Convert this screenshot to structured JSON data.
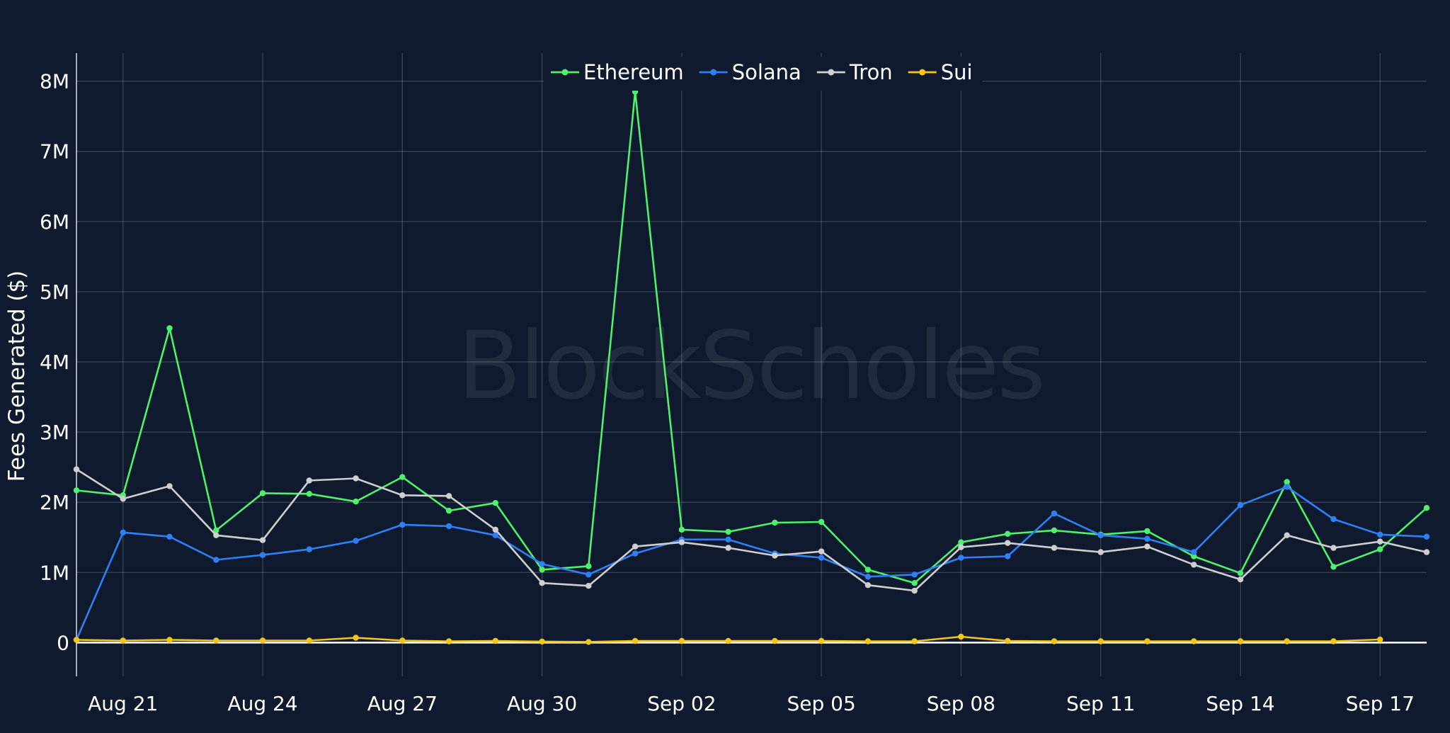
{
  "watermark": "BlockScholes",
  "colors": {
    "background": "#0f1a2e",
    "Ethereum": "#4cf26a",
    "Solana": "#2f80f7",
    "Tron": "#cfcfcf",
    "Sui": "#f5c518"
  },
  "chart_data": {
    "type": "line",
    "title": "",
    "xlabel": "",
    "ylabel": "Fees Generated ($)",
    "ylim": [
      -480000,
      8400000
    ],
    "xlim": [
      "2024-08-20",
      "2024-09-18"
    ],
    "grid": true,
    "legend": "top-center",
    "x_tick_labels": [
      "Aug 21",
      "Aug 24",
      "Aug 27",
      "Aug 30",
      "Sep 02",
      "Sep 05",
      "Sep 08",
      "Sep 11",
      "Sep 14",
      "Sep 17"
    ],
    "x_tick_dates": [
      "2024-08-21",
      "2024-08-24",
      "2024-08-27",
      "2024-08-30",
      "2024-09-02",
      "2024-09-05",
      "2024-09-08",
      "2024-09-11",
      "2024-09-14",
      "2024-09-17"
    ],
    "y_tick_labels": [
      "0",
      "1M",
      "2M",
      "3M",
      "4M",
      "5M",
      "6M",
      "7M",
      "8M"
    ],
    "y_tick_values": [
      0,
      1000000,
      2000000,
      3000000,
      4000000,
      5000000,
      6000000,
      7000000,
      8000000
    ],
    "x": [
      "2024-08-20",
      "2024-08-21",
      "2024-08-22",
      "2024-08-23",
      "2024-08-24",
      "2024-08-25",
      "2024-08-26",
      "2024-08-27",
      "2024-08-28",
      "2024-08-29",
      "2024-08-30",
      "2024-08-31",
      "2024-09-01",
      "2024-09-02",
      "2024-09-03",
      "2024-09-04",
      "2024-09-05",
      "2024-09-06",
      "2024-09-07",
      "2024-09-08",
      "2024-09-09",
      "2024-09-10",
      "2024-09-11",
      "2024-09-12",
      "2024-09-13",
      "2024-09-14",
      "2024-09-15",
      "2024-09-16",
      "2024-09-17",
      "2024-09-18"
    ],
    "series": [
      {
        "name": "Ethereum",
        "values": [
          2170000,
          2100000,
          4480000,
          1600000,
          2130000,
          2120000,
          2010000,
          2360000,
          1880000,
          1990000,
          1040000,
          1090000,
          7850000,
          1610000,
          1580000,
          1710000,
          1720000,
          1040000,
          850000,
          1430000,
          1550000,
          1600000,
          1540000,
          1590000,
          1230000,
          990000,
          2290000,
          1080000,
          1330000,
          1920000
        ]
      },
      {
        "name": "Solana",
        "values": [
          40000,
          1570000,
          1510000,
          1180000,
          1250000,
          1330000,
          1450000,
          1680000,
          1660000,
          1530000,
          1120000,
          970000,
          1270000,
          1470000,
          1470000,
          1270000,
          1210000,
          940000,
          970000,
          1210000,
          1230000,
          1840000,
          1530000,
          1480000,
          1290000,
          1960000,
          2220000,
          1760000,
          1540000,
          1510000
        ]
      },
      {
        "name": "Tron",
        "values": [
          2470000,
          2050000,
          2230000,
          1530000,
          1460000,
          2310000,
          2340000,
          2100000,
          2090000,
          1610000,
          850000,
          810000,
          1370000,
          1430000,
          1350000,
          1240000,
          1300000,
          820000,
          740000,
          1360000,
          1420000,
          1350000,
          1290000,
          1370000,
          1110000,
          900000,
          1530000,
          1350000,
          1440000,
          1290000
        ]
      },
      {
        "name": "Sui",
        "values": [
          40000,
          30000,
          40000,
          30000,
          30000,
          30000,
          70000,
          30000,
          20000,
          25000,
          15000,
          10000,
          25000,
          25000,
          25000,
          25000,
          25000,
          20000,
          20000,
          85000,
          25000,
          20000,
          20000,
          20000,
          20000,
          20000,
          20000,
          20000,
          45000,
          null
        ]
      }
    ]
  }
}
